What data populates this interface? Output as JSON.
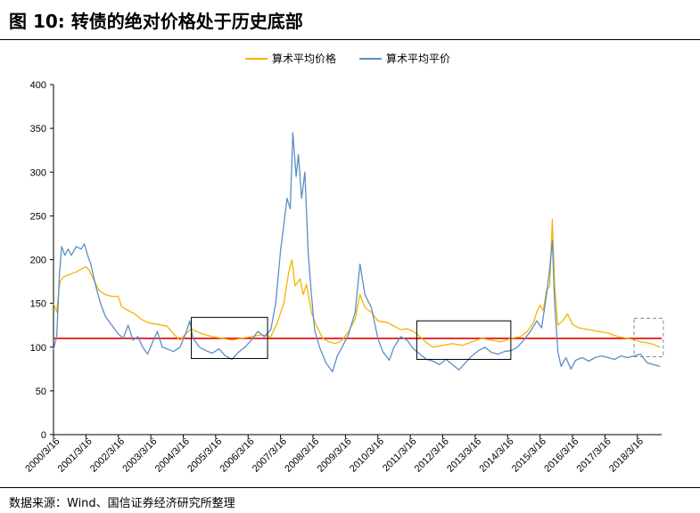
{
  "header": {
    "title": "图 10:  转债的绝对价格处于历史底部"
  },
  "footer": {
    "source": "数据来源：Wind、国信证券经济研究所整理"
  },
  "colors": {
    "price": "#f5b400",
    "par": "#5b8fc7",
    "reference": "#e00000",
    "box_solid": "#000000",
    "box_dashed": "#888888"
  },
  "chart_data": {
    "type": "line",
    "title": "",
    "xlabel": "",
    "ylabel": "",
    "ylim": [
      0,
      400
    ],
    "yticks": [
      0,
      50,
      100,
      150,
      200,
      250,
      300,
      350,
      400
    ],
    "x_range": [
      2000.0,
      2018.75
    ],
    "xticks": [
      "2000/3/16",
      "2001/3/16",
      "2002/3/16",
      "2003/3/16",
      "2004/3/16",
      "2005/3/16",
      "2006/3/16",
      "2007/3/16",
      "2008/3/16",
      "2009/3/16",
      "2010/3/16",
      "2011/3/16",
      "2012/3/16",
      "2013/3/16",
      "2014/3/16",
      "2015/3/16",
      "2016/3/16",
      "2017/3/16",
      "2018/3/16"
    ],
    "legend_position": "top-center",
    "grid": false,
    "reference_line": {
      "y": 110,
      "x_from": 2000.0,
      "x_to": 2018.75
    },
    "highlight_boxes": [
      {
        "x_from": 2004.25,
        "x_to": 2006.6,
        "y_from": 87,
        "y_to": 134,
        "style": "solid"
      },
      {
        "x_from": 2011.2,
        "x_to": 2014.1,
        "y_from": 86,
        "y_to": 130,
        "style": "solid"
      },
      {
        "x_from": 2017.9,
        "x_to": 2018.8,
        "y_from": 89,
        "y_to": 133,
        "style": "dashed"
      }
    ],
    "series": [
      {
        "name": "算术平均价格",
        "color": "#f5b400",
        "points": [
          [
            2000.0,
            150
          ],
          [
            2000.1,
            140
          ],
          [
            2000.15,
            160
          ],
          [
            2000.2,
            175
          ],
          [
            2000.3,
            180
          ],
          [
            2000.5,
            183
          ],
          [
            2000.7,
            186
          ],
          [
            2000.9,
            190
          ],
          [
            2001.0,
            192
          ],
          [
            2001.1,
            188
          ],
          [
            2001.2,
            180
          ],
          [
            2001.4,
            165
          ],
          [
            2001.6,
            160
          ],
          [
            2001.8,
            158
          ],
          [
            2002.0,
            158
          ],
          [
            2002.1,
            146
          ],
          [
            2002.3,
            142
          ],
          [
            2002.5,
            138
          ],
          [
            2002.7,
            132
          ],
          [
            2002.9,
            128
          ],
          [
            2003.2,
            126
          ],
          [
            2003.5,
            124
          ],
          [
            2003.7,
            115
          ],
          [
            2003.9,
            108
          ],
          [
            2004.1,
            116
          ],
          [
            2004.25,
            121
          ],
          [
            2004.4,
            118
          ],
          [
            2004.6,
            115
          ],
          [
            2004.9,
            112
          ],
          [
            2005.2,
            110
          ],
          [
            2005.5,
            108
          ],
          [
            2005.8,
            110
          ],
          [
            2006.1,
            112
          ],
          [
            2006.4,
            114
          ],
          [
            2006.7,
            112
          ],
          [
            2006.9,
            128
          ],
          [
            2007.1,
            150
          ],
          [
            2007.25,
            185
          ],
          [
            2007.35,
            200
          ],
          [
            2007.45,
            170
          ],
          [
            2007.6,
            178
          ],
          [
            2007.7,
            160
          ],
          [
            2007.8,
            172
          ],
          [
            2007.95,
            140
          ],
          [
            2008.1,
            125
          ],
          [
            2008.3,
            110
          ],
          [
            2008.5,
            106
          ],
          [
            2008.7,
            104
          ],
          [
            2008.9,
            108
          ],
          [
            2009.1,
            118
          ],
          [
            2009.3,
            132
          ],
          [
            2009.45,
            160
          ],
          [
            2009.6,
            145
          ],
          [
            2009.8,
            140
          ],
          [
            2010.0,
            130
          ],
          [
            2010.3,
            128
          ],
          [
            2010.5,
            124
          ],
          [
            2010.7,
            120
          ],
          [
            2010.9,
            121
          ],
          [
            2011.1,
            118
          ],
          [
            2011.3,
            112
          ],
          [
            2011.5,
            105
          ],
          [
            2011.7,
            100
          ],
          [
            2012.0,
            102
          ],
          [
            2012.3,
            104
          ],
          [
            2012.6,
            102
          ],
          [
            2012.9,
            106
          ],
          [
            2013.2,
            110
          ],
          [
            2013.5,
            108
          ],
          [
            2013.8,
            106
          ],
          [
            2014.1,
            110
          ],
          [
            2014.4,
            112
          ],
          [
            2014.6,
            118
          ],
          [
            2014.8,
            128
          ],
          [
            2014.9,
            140
          ],
          [
            2015.0,
            148
          ],
          [
            2015.1,
            142
          ],
          [
            2015.2,
            165
          ],
          [
            2015.3,
            170
          ],
          [
            2015.38,
            246
          ],
          [
            2015.45,
            170
          ],
          [
            2015.55,
            125
          ],
          [
            2015.7,
            130
          ],
          [
            2015.85,
            138
          ],
          [
            2016.0,
            126
          ],
          [
            2016.2,
            122
          ],
          [
            2016.5,
            120
          ],
          [
            2016.8,
            118
          ],
          [
            2017.1,
            116
          ],
          [
            2017.4,
            112
          ],
          [
            2017.7,
            110
          ],
          [
            2017.95,
            108
          ],
          [
            2018.1,
            106
          ],
          [
            2018.3,
            105
          ],
          [
            2018.5,
            103
          ],
          [
            2018.7,
            100
          ]
        ]
      },
      {
        "name": "算术平均平价",
        "color": "#5b8fc7",
        "points": [
          [
            2000.0,
            97
          ],
          [
            2000.05,
            105
          ],
          [
            2000.1,
            112
          ],
          [
            2000.18,
            180
          ],
          [
            2000.25,
            215
          ],
          [
            2000.35,
            205
          ],
          [
            2000.45,
            212
          ],
          [
            2000.55,
            205
          ],
          [
            2000.7,
            215
          ],
          [
            2000.85,
            212
          ],
          [
            2000.95,
            218
          ],
          [
            2001.05,
            205
          ],
          [
            2001.15,
            195
          ],
          [
            2001.3,
            170
          ],
          [
            2001.45,
            150
          ],
          [
            2001.6,
            135
          ],
          [
            2001.8,
            125
          ],
          [
            2002.0,
            115
          ],
          [
            2002.15,
            110
          ],
          [
            2002.3,
            125
          ],
          [
            2002.45,
            108
          ],
          [
            2002.6,
            112
          ],
          [
            2002.75,
            100
          ],
          [
            2002.9,
            92
          ],
          [
            2003.05,
            105
          ],
          [
            2003.2,
            118
          ],
          [
            2003.35,
            100
          ],
          [
            2003.5,
            98
          ],
          [
            2003.7,
            95
          ],
          [
            2003.9,
            100
          ],
          [
            2004.1,
            118
          ],
          [
            2004.2,
            130
          ],
          [
            2004.3,
            110
          ],
          [
            2004.5,
            100
          ],
          [
            2004.7,
            96
          ],
          [
            2004.9,
            93
          ],
          [
            2005.1,
            98
          ],
          [
            2005.3,
            90
          ],
          [
            2005.5,
            86
          ],
          [
            2005.7,
            94
          ],
          [
            2005.9,
            100
          ],
          [
            2006.1,
            108
          ],
          [
            2006.3,
            118
          ],
          [
            2006.5,
            112
          ],
          [
            2006.7,
            120
          ],
          [
            2006.85,
            150
          ],
          [
            2007.0,
            210
          ],
          [
            2007.1,
            240
          ],
          [
            2007.2,
            270
          ],
          [
            2007.3,
            258
          ],
          [
            2007.38,
            345
          ],
          [
            2007.48,
            295
          ],
          [
            2007.55,
            320
          ],
          [
            2007.65,
            270
          ],
          [
            2007.75,
            300
          ],
          [
            2007.85,
            210
          ],
          [
            2007.95,
            160
          ],
          [
            2008.05,
            120
          ],
          [
            2008.2,
            100
          ],
          [
            2008.4,
            82
          ],
          [
            2008.6,
            72
          ],
          [
            2008.75,
            90
          ],
          [
            2008.9,
            100
          ],
          [
            2009.1,
            115
          ],
          [
            2009.3,
            140
          ],
          [
            2009.45,
            195
          ],
          [
            2009.6,
            160
          ],
          [
            2009.8,
            145
          ],
          [
            2010.0,
            110
          ],
          [
            2010.15,
            95
          ],
          [
            2010.35,
            85
          ],
          [
            2010.5,
            100
          ],
          [
            2010.7,
            112
          ],
          [
            2010.9,
            108
          ],
          [
            2011.1,
            98
          ],
          [
            2011.3,
            92
          ],
          [
            2011.5,
            86
          ],
          [
            2011.7,
            84
          ],
          [
            2011.9,
            80
          ],
          [
            2012.1,
            86
          ],
          [
            2012.3,
            80
          ],
          [
            2012.5,
            74
          ],
          [
            2012.7,
            82
          ],
          [
            2012.9,
            90
          ],
          [
            2013.1,
            96
          ],
          [
            2013.3,
            100
          ],
          [
            2013.5,
            94
          ],
          [
            2013.7,
            92
          ],
          [
            2013.9,
            95
          ],
          [
            2014.1,
            96
          ],
          [
            2014.3,
            100
          ],
          [
            2014.5,
            108
          ],
          [
            2014.7,
            118
          ],
          [
            2014.9,
            130
          ],
          [
            2015.05,
            122
          ],
          [
            2015.2,
            160
          ],
          [
            2015.3,
            190
          ],
          [
            2015.38,
            222
          ],
          [
            2015.45,
            150
          ],
          [
            2015.55,
            95
          ],
          [
            2015.65,
            78
          ],
          [
            2015.8,
            88
          ],
          [
            2015.95,
            75
          ],
          [
            2016.1,
            85
          ],
          [
            2016.3,
            88
          ],
          [
            2016.5,
            84
          ],
          [
            2016.7,
            88
          ],
          [
            2016.9,
            90
          ],
          [
            2017.1,
            88
          ],
          [
            2017.3,
            86
          ],
          [
            2017.5,
            90
          ],
          [
            2017.7,
            88
          ],
          [
            2017.9,
            90
          ],
          [
            2018.1,
            92
          ],
          [
            2018.3,
            82
          ],
          [
            2018.5,
            80
          ],
          [
            2018.7,
            78
          ]
        ]
      }
    ]
  }
}
